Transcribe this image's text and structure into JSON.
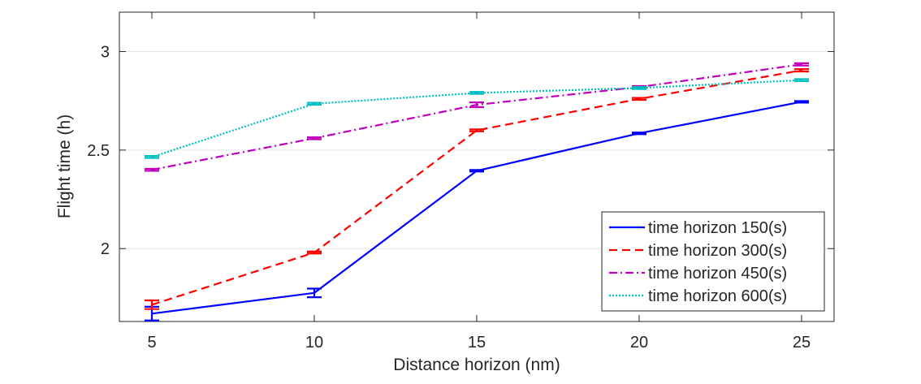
{
  "chart_data": {
    "type": "line",
    "title": "",
    "xlabel": "Distance horizon (nm)",
    "ylabel": "Flight time (h)",
    "x": [
      5,
      10,
      15,
      20,
      25
    ],
    "xlim": [
      4,
      26
    ],
    "ylim": [
      1.63,
      3.2
    ],
    "xticks": [
      5,
      10,
      15,
      20,
      25
    ],
    "yticks": [
      2,
      2.5,
      3
    ],
    "ytick_labels": [
      "2",
      "2.5",
      "3"
    ],
    "grid": "horizontal",
    "legend_location": "bottom-right",
    "series": [
      {
        "name": "time horizon 150(s)",
        "color": "#0000ff",
        "style": "solid",
        "values": [
          1.67,
          1.775,
          2.395,
          2.585,
          2.745
        ],
        "errors": [
          0.035,
          0.022,
          0.004,
          0.004,
          0.004
        ]
      },
      {
        "name": "time horizon 300(s)",
        "color": "#ff0000",
        "style": "dashed",
        "values": [
          1.715,
          1.98,
          2.6,
          2.76,
          2.905
        ],
        "errors": [
          0.022,
          0.005,
          0.005,
          0.005,
          0.006
        ]
      },
      {
        "name": "time horizon 450(s)",
        "color": "#bf00bf",
        "style": "dashdot",
        "values": [
          2.4,
          2.56,
          2.73,
          2.82,
          2.935
        ],
        "errors": [
          0.005,
          0.005,
          0.012,
          0.005,
          0.006
        ]
      },
      {
        "name": "time horizon 600(s)",
        "color": "#00bfbf",
        "style": "dotted",
        "values": [
          2.465,
          2.735,
          2.79,
          2.815,
          2.855
        ],
        "errors": [
          0.005,
          0.005,
          0.005,
          0.005,
          0.005
        ]
      }
    ]
  }
}
